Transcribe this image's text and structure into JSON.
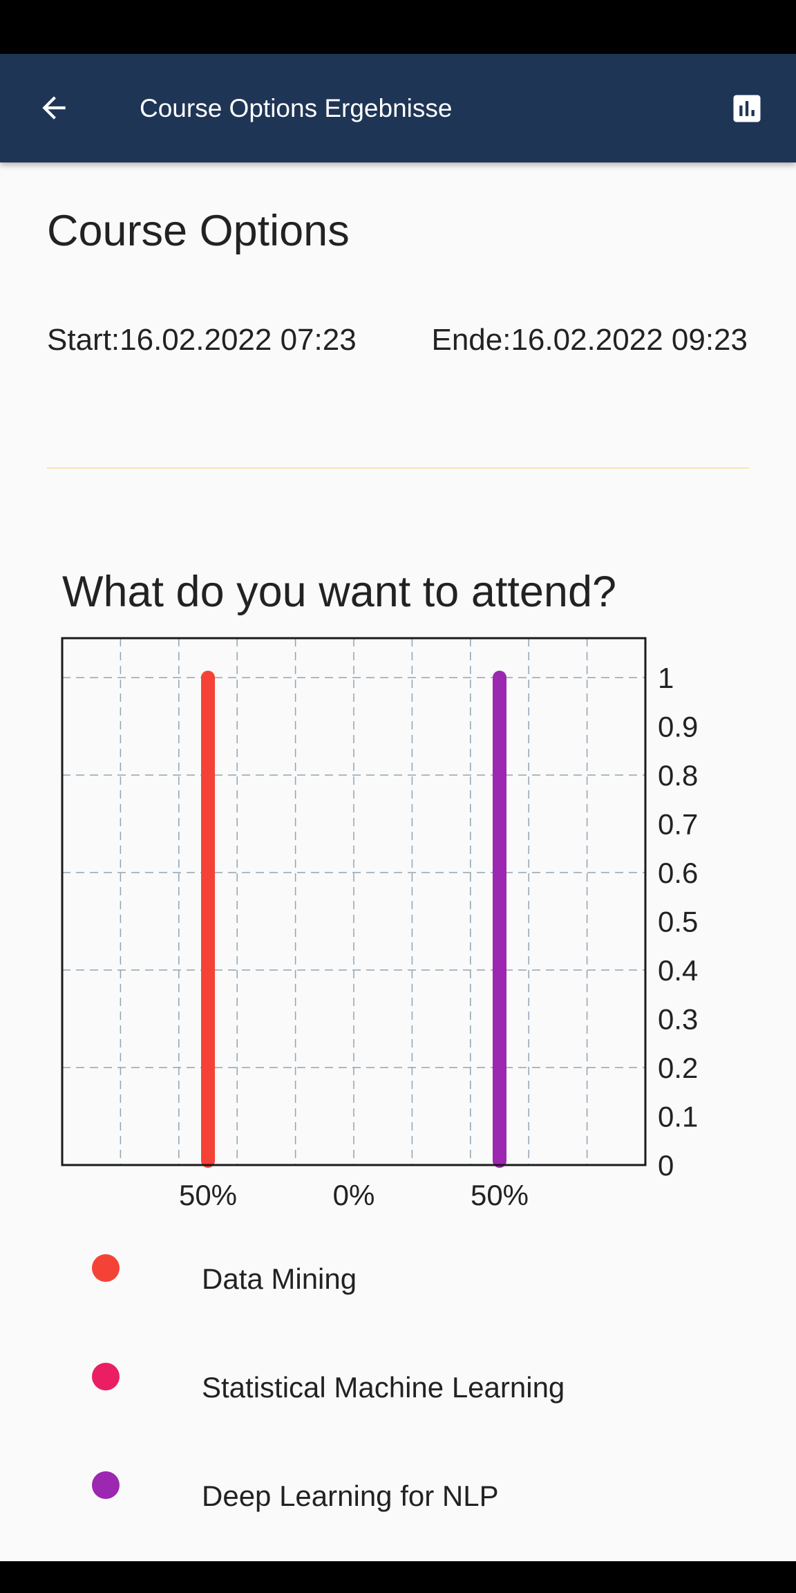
{
  "app_bar": {
    "title": "Course Options Ergebnisse",
    "back_icon": "arrow-left-icon",
    "action_icon": "bar-chart-icon"
  },
  "page": {
    "title": "Course Options",
    "start": "Start:16.02.2022 07:23",
    "end": "Ende:16.02.2022 09:23"
  },
  "question": {
    "title": "What do you want to attend?"
  },
  "chart_data": {
    "type": "bar",
    "title": "What do you want to attend?",
    "categories": [
      "Data Mining",
      "Statistical Machine Learning",
      "Deep Learning for NLP"
    ],
    "values": [
      1,
      0,
      1
    ],
    "category_labels": [
      "50%",
      "0%",
      "50%"
    ],
    "colors": [
      "#f44336",
      "#e91e63",
      "#9c27b0"
    ],
    "ylim": [
      0,
      1
    ],
    "y_ticks": [
      0,
      0.1,
      0.2,
      0.3,
      0.4,
      0.5,
      0.6,
      0.7,
      0.8,
      0.9,
      1
    ],
    "y_tick_labels": [
      "0",
      "0.1",
      "0.2",
      "0.3",
      "0.4",
      "0.5",
      "0.6",
      "0.7",
      "0.8",
      "0.9",
      "1"
    ],
    "y_axis_position": "right",
    "grid": true,
    "grid_style": "dashed",
    "xlabel": "",
    "ylabel": ""
  },
  "legend": [
    {
      "label": "Data Mining",
      "color": "#f44336"
    },
    {
      "label": "Statistical Machine Learning",
      "color": "#e91e63"
    },
    {
      "label": "Deep Learning for NLP",
      "color": "#9c27b0"
    }
  ],
  "colors": {
    "app_bar": "#1f3556",
    "background": "#fafafa",
    "divider": "#f2e6b6",
    "grid": "#8fa3b3"
  }
}
